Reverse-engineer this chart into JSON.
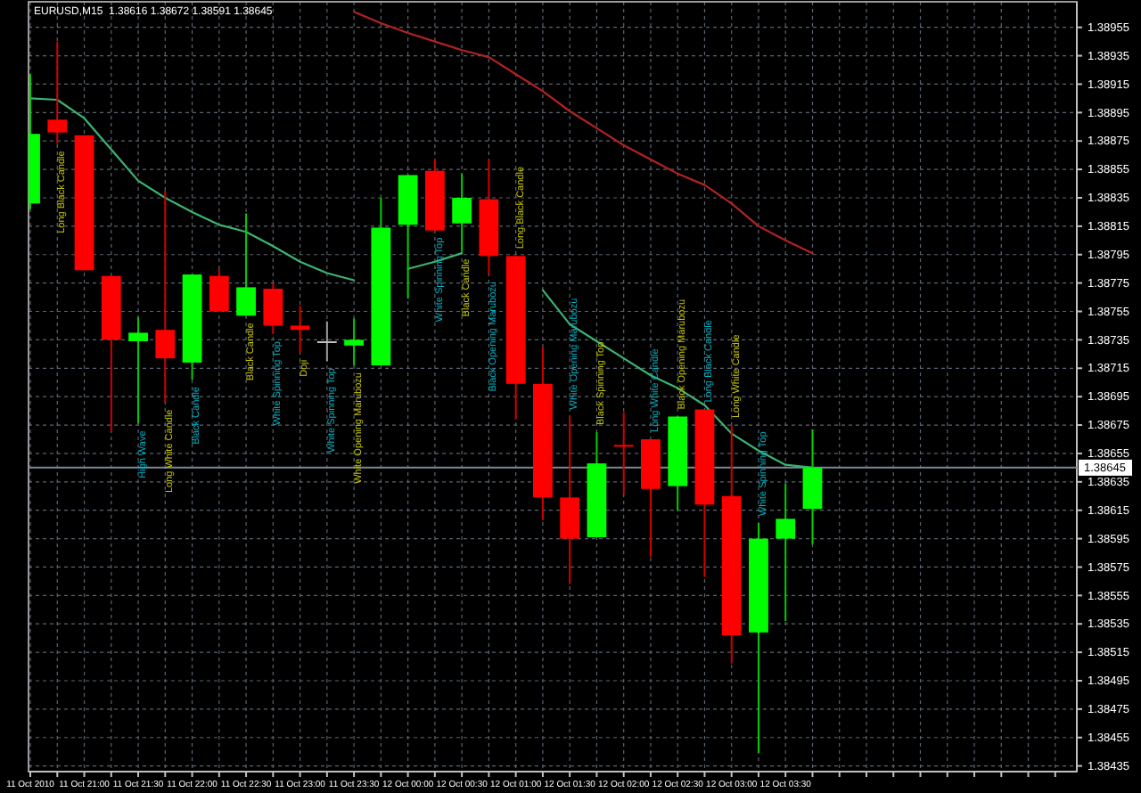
{
  "chart_data": {
    "type": "candlestick",
    "title": "EURUSD,M15  1.38616 1.38672 1.38591 1.38645",
    "x": [
      "2010-10-11T20:30",
      "2010-10-11T20:45",
      "2010-10-11T21:00",
      "2010-10-11T21:15",
      "2010-10-11T21:30",
      "2010-10-11T21:45",
      "2010-10-11T22:00",
      "2010-10-11T22:15",
      "2010-10-11T22:30",
      "2010-10-11T22:45",
      "2010-10-11T23:00",
      "2010-10-11T23:15",
      "2010-10-11T23:30",
      "2010-10-11T23:45",
      "2010-10-12T00:00",
      "2010-10-12T00:15",
      "2010-10-12T00:30",
      "2010-10-12T00:45",
      "2010-10-12T01:00",
      "2010-10-12T01:15",
      "2010-10-12T01:30",
      "2010-10-12T01:45",
      "2010-10-12T02:00",
      "2010-10-12T02:15",
      "2010-10-12T02:30",
      "2010-10-12T02:45",
      "2010-10-12T03:00",
      "2010-10-12T03:15",
      "2010-10-12T03:30",
      "2010-10-12T03:45"
    ],
    "ohlc": [
      [
        1.38831,
        1.38922,
        1.38827,
        1.3888
      ],
      [
        1.3889,
        1.38945,
        1.38873,
        1.38881
      ],
      [
        1.38879,
        1.38879,
        1.38784,
        1.38784
      ],
      [
        1.3878,
        1.3878,
        1.3867,
        1.38735
      ],
      [
        1.38734,
        1.38751,
        1.38676,
        1.3874
      ],
      [
        1.38742,
        1.3884,
        1.38691,
        1.38722
      ],
      [
        1.38719,
        1.38781,
        1.38707,
        1.38781
      ],
      [
        1.3878,
        1.38785,
        1.38755,
        1.38755
      ],
      [
        1.38752,
        1.38824,
        1.38752,
        1.38772
      ],
      [
        1.38771,
        1.38775,
        1.38739,
        1.38745
      ],
      [
        1.38745,
        1.38759,
        1.38726,
        1.38742
      ],
      [
        1.38734,
        1.38748,
        1.3872,
        1.38734
      ],
      [
        1.38731,
        1.3875,
        1.38717,
        1.38735
      ],
      [
        1.38717,
        1.38835,
        1.38717,
        1.38814
      ],
      [
        1.38816,
        1.38851,
        1.38764,
        1.38851
      ],
      [
        1.38854,
        1.38862,
        1.38812,
        1.38812
      ],
      [
        1.38817,
        1.38852,
        1.38797,
        1.38835
      ],
      [
        1.38834,
        1.38862,
        1.38781,
        1.38794
      ],
      [
        1.38794,
        1.38794,
        1.38679,
        1.38704
      ],
      [
        1.38704,
        1.3873,
        1.38608,
        1.38624
      ],
      [
        1.38624,
        1.38681,
        1.38563,
        1.38595
      ],
      [
        1.38596,
        1.3867,
        1.38596,
        1.38648
      ],
      [
        1.38661,
        1.38684,
        1.38626,
        1.3866
      ],
      [
        1.38665,
        1.38665,
        1.38582,
        1.3863
      ],
      [
        1.38632,
        1.38681,
        1.38615,
        1.38681
      ],
      [
        1.38686,
        1.38686,
        1.38568,
        1.38619
      ],
      [
        1.38625,
        1.38675,
        1.38507,
        1.38527
      ],
      [
        1.38529,
        1.38606,
        1.38444,
        1.38595
      ],
      [
        1.38595,
        1.38634,
        1.38537,
        1.38609
      ],
      [
        1.38616,
        1.38672,
        1.38591,
        1.38645
      ]
    ],
    "colors": [
      "#00ff00",
      "#ff0000",
      "#ff0000",
      "#ff0000",
      "#00ff00",
      "#ff0000",
      "#00ff00",
      "#ff0000",
      "#00ff00",
      "#ff0000",
      "#ff0000",
      "#c0c0c0",
      "#00ff00",
      "#00ff00",
      "#00ff00",
      "#ff0000",
      "#00ff00",
      "#ff0000",
      "#ff0000",
      "#ff0000",
      "#ff0000",
      "#00ff00",
      "#ff0000",
      "#ff0000",
      "#00ff00",
      "#ff0000",
      "#ff0000",
      "#00ff00",
      "#00ff00",
      "#00ff00"
    ],
    "series": [
      {
        "type": "line",
        "color": "#3cb371",
        "values": [
          1.38905,
          1.38904,
          1.38891,
          1.38869,
          1.38847,
          1.38835,
          1.38825,
          1.38816,
          1.38811,
          1.38801,
          1.3879,
          1.38782,
          1.38777,
          null,
          1.38785,
          1.3879,
          1.38796,
          null,
          null,
          1.3877,
          1.38746,
          1.38734,
          1.38722,
          1.3871,
          1.38701,
          1.38689,
          1.38669,
          1.38657,
          1.38647,
          1.38645
        ]
      },
      {
        "type": "line",
        "color": "#b22222",
        "values": [
          null,
          null,
          null,
          null,
          null,
          null,
          null,
          null,
          null,
          null,
          null,
          null,
          1.38966,
          1.38958,
          1.38951,
          1.38945,
          1.38939,
          1.38934,
          1.38922,
          1.3891,
          1.38896,
          1.38884,
          1.38872,
          1.38862,
          1.38852,
          1.38844,
          1.38831,
          1.38815,
          1.38805,
          1.38796
        ]
      }
    ],
    "xlim": [
      "2010-10-11T20:29",
      "2010-10-12T06:12"
    ],
    "xticks": [
      {
        "value": "2010-10-11T20:30",
        "label": "11 Oct 2010"
      },
      {
        "value": "2010-10-11T20:45",
        "label": null
      },
      {
        "value": "2010-10-11T21:00",
        "label": "11 Oct 21:00"
      },
      {
        "value": "2010-10-11T21:15",
        "label": null
      },
      {
        "value": "2010-10-11T21:30",
        "label": "11 Oct 21:30"
      },
      {
        "value": "2010-10-11T21:45",
        "label": null
      },
      {
        "value": "2010-10-11T22:00",
        "label": "11 Oct 22:00"
      },
      {
        "value": "2010-10-11T22:15",
        "label": null
      },
      {
        "value": "2010-10-11T22:30",
        "label": "11 Oct 22:30"
      },
      {
        "value": "2010-10-11T22:45",
        "label": null
      },
      {
        "value": "2010-10-11T23:00",
        "label": "11 Oct 23:00"
      },
      {
        "value": "2010-10-11T23:15",
        "label": null
      },
      {
        "value": "2010-10-11T23:30",
        "label": "11 Oct 23:30"
      },
      {
        "value": "2010-10-11T23:45",
        "label": null
      },
      {
        "value": "2010-10-12T00:00",
        "label": "12 Oct 00:00"
      },
      {
        "value": "2010-10-12T00:15",
        "label": null
      },
      {
        "value": "2010-10-12T00:30",
        "label": "12 Oct 00:30"
      },
      {
        "value": "2010-10-12T00:45",
        "label": null
      },
      {
        "value": "2010-10-12T01:00",
        "label": "12 Oct 01:00"
      },
      {
        "value": "2010-10-12T01:15",
        "label": null
      },
      {
        "value": "2010-10-12T01:30",
        "label": "12 Oct 01:30"
      },
      {
        "value": "2010-10-12T01:45",
        "label": null
      },
      {
        "value": "2010-10-12T02:00",
        "label": "12 Oct 02:00"
      },
      {
        "value": "2010-10-12T02:15",
        "label": null
      },
      {
        "value": "2010-10-12T02:30",
        "label": "12 Oct 02:30"
      },
      {
        "value": "2010-10-12T02:45",
        "label": null
      },
      {
        "value": "2010-10-12T03:00",
        "label": "12 Oct 03:00"
      },
      {
        "value": "2010-10-12T03:15",
        "label": null
      },
      {
        "value": "2010-10-12T03:30",
        "label": "12 Oct 03:30"
      },
      {
        "value": "2010-10-12T03:45",
        "label": null
      },
      {
        "value": "2010-10-12T04:00",
        "label": null
      },
      {
        "value": "2010-10-12T04:15",
        "label": null
      },
      {
        "value": "2010-10-12T04:30",
        "label": null
      },
      {
        "value": "2010-10-12T04:45",
        "label": null
      },
      {
        "value": "2010-10-12T05:00",
        "label": null
      },
      {
        "value": "2010-10-12T05:15",
        "label": null
      },
      {
        "value": "2010-10-12T05:30",
        "label": null
      },
      {
        "value": "2010-10-12T05:45",
        "label": null
      },
      {
        "value": "2010-10-12T06:00",
        "label": null
      }
    ],
    "ylim": [
      1.38431,
      1.38973
    ],
    "yticks": [
      1.38435,
      1.38455,
      1.38475,
      1.38495,
      1.38515,
      1.38535,
      1.38555,
      1.38575,
      1.38595,
      1.38615,
      1.38635,
      1.38655,
      1.38675,
      1.38695,
      1.38715,
      1.38735,
      1.38755,
      1.38775,
      1.38795,
      1.38815,
      1.38835,
      1.38855,
      1.38875,
      1.38895,
      1.38915,
      1.38935,
      1.38955
    ],
    "grid": true,
    "ref_lines": [
      {
        "axis": "y",
        "value": 1.38645,
        "label": "1.38645",
        "color": "#778899"
      }
    ],
    "annotations": [
      {
        "text": "Long Black Candle",
        "x": "2010-10-11T20:45",
        "y": 1.38873
      },
      {
        "text": "High Wave",
        "x": "2010-10-11T21:30",
        "y": 1.38676
      },
      {
        "text": "Long White Candle",
        "x": "2010-10-11T21:45",
        "y": 1.38691
      },
      {
        "text": "Black Candle",
        "x": "2010-10-11T22:00",
        "y": 1.38707
      },
      {
        "text": "Black Candle",
        "x": "2010-10-11T22:30",
        "y": 1.38752
      },
      {
        "text": "White Spinning Top",
        "x": "2010-10-11T22:45",
        "y": 1.38739
      },
      {
        "text": "Doji",
        "x": "2010-10-11T23:00",
        "y": 1.38726
      },
      {
        "text": "White Spinning Top",
        "x": "2010-10-11T23:15",
        "y": 1.3872
      },
      {
        "text": "White Opening Marubozu",
        "x": "2010-10-11T23:30",
        "y": 1.38717
      },
      {
        "text": "White Spinning Top",
        "x": "2010-10-12T00:15",
        "y": 1.38812
      },
      {
        "text": "Black Candle",
        "x": "2010-10-12T00:30",
        "y": 1.38797
      },
      {
        "text": "Black Opening Marubozu",
        "x": "2010-10-12T00:45",
        "y": 1.38781
      },
      {
        "text": "Long Black Candle",
        "x": "2010-10-12T01:00",
        "y": 1.38794
      },
      {
        "text": "White Opening Marubozu",
        "x": "2010-10-12T01:30",
        "y": 1.38681
      },
      {
        "text": "Black Spinning Top",
        "x": "2010-10-12T01:45",
        "y": 1.3867
      },
      {
        "text": "Long White Candle",
        "x": "2010-10-12T02:15",
        "y": 1.38665
      },
      {
        "text": "Black Opening Marubozu",
        "x": "2010-10-12T02:30",
        "y": 1.38681
      },
      {
        "text": "Long Black Candle",
        "x": "2010-10-12T02:45",
        "y": 1.38686
      },
      {
        "text": "Long White Candle",
        "x": "2010-10-12T03:00",
        "y": 1.38675
      },
      {
        "text": "White Spinning Top",
        "x": "2010-10-12T03:15",
        "y": 1.38606
      }
    ]
  }
}
